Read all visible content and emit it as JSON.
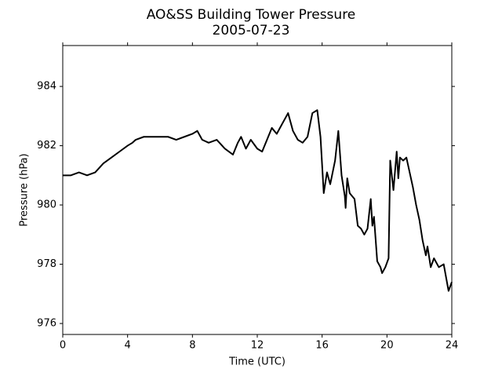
{
  "chart_data": {
    "type": "line",
    "title": "AO&SS Building Tower Pressure",
    "subtitle": "2005-07-23",
    "xlabel": "Time (UTC)",
    "ylabel": "Pressure (hPa)",
    "xlim": [
      0,
      24
    ],
    "xticks": [
      0,
      4,
      8,
      12,
      16,
      20,
      24
    ],
    "ylim": [
      975.63,
      985.38
    ],
    "yticks": [
      976,
      978,
      980,
      982,
      984
    ],
    "color": "#000000",
    "x": [
      0,
      0.5,
      1,
      1.5,
      2,
      2.5,
      3,
      3.5,
      4,
      4.3,
      4.5,
      5,
      5.5,
      6,
      6.5,
      7,
      7.5,
      8,
      8.3,
      8.6,
      9,
      9.5,
      10,
      10.5,
      10.8,
      11,
      11.3,
      11.6,
      12,
      12.3,
      12.6,
      12.9,
      13.2,
      13.5,
      13.9,
      14.2,
      14.5,
      14.8,
      15.1,
      15.4,
      15.7,
      15.9,
      16.1,
      16.3,
      16.5,
      16.8,
      17.0,
      17.2,
      17.4,
      17.45,
      17.55,
      17.7,
      18.0,
      18.2,
      18.4,
      18.6,
      18.8,
      19.0,
      19.1,
      19.2,
      19.4,
      19.6,
      19.7,
      19.9,
      20.1,
      20.2,
      20.4,
      20.6,
      20.7,
      20.8,
      21.0,
      21.2,
      21.4,
      21.6,
      21.8,
      22.0,
      22.2,
      22.4,
      22.5,
      22.7,
      22.9,
      23.2,
      23.5,
      23.8,
      24.0
    ],
    "values": [
      981.0,
      981.0,
      981.1,
      981.0,
      981.1,
      981.4,
      981.6,
      981.8,
      982.0,
      982.1,
      982.2,
      982.3,
      982.3,
      982.3,
      982.3,
      982.2,
      982.3,
      982.4,
      982.5,
      982.2,
      982.1,
      982.2,
      981.9,
      981.7,
      982.1,
      982.3,
      981.9,
      982.2,
      981.9,
      981.8,
      982.2,
      982.6,
      982.4,
      982.7,
      983.1,
      982.5,
      982.2,
      982.1,
      982.3,
      983.1,
      983.2,
      982.3,
      980.4,
      981.1,
      980.7,
      981.5,
      982.5,
      981.0,
      980.3,
      979.9,
      980.9,
      980.4,
      980.2,
      979.3,
      979.2,
      979.0,
      979.2,
      980.2,
      979.3,
      979.6,
      978.1,
      977.9,
      977.7,
      977.9,
      978.2,
      981.5,
      980.5,
      981.8,
      980.9,
      981.6,
      981.5,
      981.6,
      981.1,
      980.6,
      980.0,
      979.5,
      978.8,
      978.3,
      978.6,
      977.9,
      978.2,
      977.9,
      978.0,
      977.1,
      977.4
    ]
  }
}
